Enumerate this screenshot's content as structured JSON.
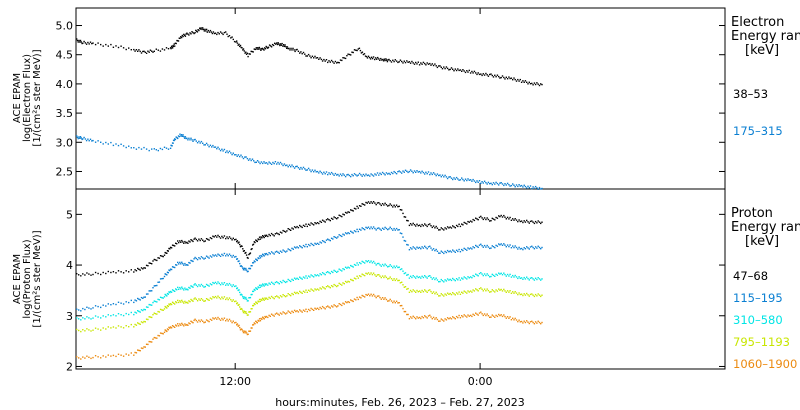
{
  "chart_data": [
    {
      "type": "scatter",
      "panel": "electron",
      "ylabel_lines": [
        "ACE EPAM",
        "log(Electron Flux)",
        "[1/(cm²s ster MeV)]"
      ],
      "ylim": [
        2.2,
        5.3
      ],
      "yticks": [
        2.5,
        3.0,
        3.5,
        4.0,
        4.5,
        5.0
      ],
      "ytick_labels": [
        "2.5",
        "3.0",
        "3.5",
        "4.0",
        "4.5",
        "5.0"
      ],
      "legend_title": [
        "Electron",
        "Energy ran",
        "[keV]"
      ],
      "series": [
        {
          "name": "38–53",
          "color": "#000000",
          "x": [
            4.2,
            4.5,
            5,
            6,
            7,
            7.5,
            8,
            8.8,
            9,
            9.3,
            9.6,
            10,
            10.3,
            10.6,
            11,
            11.5,
            12,
            12.3,
            12.6,
            13,
            13.3,
            13.6,
            14,
            14.3,
            14.6,
            15,
            15.5,
            16,
            16.5,
            17,
            17.5,
            18,
            18.4,
            18.8,
            19.2,
            19.5,
            20,
            20.5,
            21,
            21.5,
            22,
            22.5,
            23,
            23.5,
            24,
            24.5,
            25,
            25.5,
            26,
            26.5,
            27
          ],
          "y": [
            4.76,
            4.72,
            4.7,
            4.66,
            4.6,
            4.55,
            4.58,
            4.62,
            4.68,
            4.82,
            4.86,
            4.9,
            4.96,
            4.92,
            4.88,
            4.88,
            4.74,
            4.62,
            4.5,
            4.63,
            4.6,
            4.65,
            4.7,
            4.68,
            4.62,
            4.58,
            4.5,
            4.45,
            4.4,
            4.38,
            4.5,
            4.62,
            4.47,
            4.45,
            4.43,
            4.41,
            4.4,
            4.38,
            4.36,
            4.36,
            4.3,
            4.27,
            4.24,
            4.22,
            4.18,
            4.16,
            4.13,
            4.1,
            4.06,
            4.02,
            4.0
          ]
        },
        {
          "name": "175–315",
          "color": "#0a7fd2",
          "x": [
            4.2,
            4.5,
            5,
            6,
            7,
            8,
            8.8,
            9,
            9.3,
            9.6,
            10,
            10.5,
            11,
            11.5,
            12,
            12.5,
            13,
            13.5,
            14,
            14.5,
            15,
            15.5,
            16,
            16.5,
            17,
            17.5,
            18,
            18.5,
            19,
            19.5,
            20,
            20.5,
            21,
            21.5,
            22,
            22.5,
            23,
            23.5,
            24,
            24.5,
            25,
            25.5,
            26,
            26.5,
            27
          ],
          "y": [
            3.1,
            3.08,
            3.03,
            2.98,
            2.92,
            2.88,
            2.92,
            3.06,
            3.14,
            3.08,
            3.04,
            2.98,
            2.92,
            2.86,
            2.8,
            2.74,
            2.68,
            2.65,
            2.66,
            2.62,
            2.58,
            2.55,
            2.5,
            2.48,
            2.46,
            2.44,
            2.46,
            2.44,
            2.47,
            2.48,
            2.5,
            2.52,
            2.5,
            2.48,
            2.45,
            2.4,
            2.38,
            2.36,
            2.33,
            2.31,
            2.3,
            2.28,
            2.26,
            2.24,
            2.22
          ]
        }
      ]
    },
    {
      "type": "scatter",
      "panel": "proton",
      "ylabel_lines": [
        "ACE EPAM",
        "log(Proton Flux)",
        "[1/(cm²s ster MeV)]"
      ],
      "ylim": [
        1.95,
        5.5
      ],
      "yticks": [
        2,
        3,
        4,
        5
      ],
      "ytick_labels": [
        "2",
        "3",
        "4",
        "5"
      ],
      "legend_title": [
        "Proton",
        "Energy ran",
        "[keV]"
      ],
      "series": [
        {
          "name": "47–68",
          "color": "#000000",
          "x": [
            4.2,
            5,
            6,
            7,
            7.5,
            8,
            8.5,
            8.8,
            9.2,
            9.6,
            10,
            10.5,
            11,
            11.5,
            12,
            12.3,
            12.6,
            12.9,
            13.2,
            13.5,
            14,
            14.5,
            15,
            15.5,
            16,
            16.5,
            17,
            17.5,
            18,
            18.5,
            19,
            19.5,
            20,
            20.5,
            21,
            21.5,
            22,
            22.5,
            23,
            23.5,
            24,
            24.5,
            25,
            25.5,
            26,
            26.5,
            27
          ],
          "y": [
            3.82,
            3.84,
            3.87,
            3.9,
            3.96,
            4.1,
            4.22,
            4.35,
            4.48,
            4.46,
            4.52,
            4.5,
            4.58,
            4.56,
            4.52,
            4.36,
            4.16,
            4.46,
            4.55,
            4.6,
            4.62,
            4.7,
            4.76,
            4.8,
            4.85,
            4.9,
            4.96,
            5.05,
            5.16,
            5.26,
            5.22,
            5.2,
            5.16,
            4.82,
            4.8,
            4.8,
            4.72,
            4.75,
            4.8,
            4.88,
            4.95,
            4.9,
            4.98,
            4.92,
            4.88,
            4.86,
            4.86
          ]
        },
        {
          "name": "115–195",
          "color": "#0a7fd2",
          "x": [
            4.2,
            5,
            6,
            7,
            7.5,
            8,
            8.5,
            8.8,
            9.2,
            9.6,
            10,
            10.5,
            11,
            11.5,
            12,
            12.3,
            12.6,
            12.9,
            13.2,
            13.5,
            14,
            14.5,
            15,
            15.5,
            16,
            16.5,
            17,
            17.5,
            18,
            18.5,
            19,
            19.5,
            20,
            20.5,
            21,
            21.5,
            22,
            22.5,
            23,
            23.5,
            24,
            24.5,
            25,
            25.5,
            26,
            26.5,
            27
          ],
          "y": [
            3.12,
            3.18,
            3.24,
            3.3,
            3.38,
            3.58,
            3.8,
            3.92,
            4.06,
            4.02,
            4.14,
            4.16,
            4.2,
            4.22,
            4.18,
            3.96,
            3.9,
            4.08,
            4.18,
            4.24,
            4.26,
            4.3,
            4.36,
            4.4,
            4.44,
            4.5,
            4.58,
            4.64,
            4.7,
            4.76,
            4.72,
            4.74,
            4.7,
            4.34,
            4.36,
            4.36,
            4.26,
            4.28,
            4.3,
            4.35,
            4.4,
            4.36,
            4.42,
            4.38,
            4.34,
            4.36,
            4.36
          ]
        },
        {
          "name": "310–580",
          "color": "#00e5e5",
          "x": [
            4.2,
            5,
            6,
            7,
            7.5,
            8,
            8.5,
            8.8,
            9.2,
            9.6,
            10,
            10.5,
            11,
            11.5,
            12,
            12.3,
            12.6,
            12.9,
            13.2,
            13.5,
            14,
            14.5,
            15,
            15.5,
            16,
            16.5,
            17,
            17.5,
            18,
            18.5,
            19,
            19.5,
            20,
            20.5,
            21,
            21.5,
            22,
            22.5,
            23,
            23.5,
            24,
            24.5,
            25,
            25.5,
            26,
            26.5,
            27
          ],
          "y": [
            2.95,
            2.98,
            3.02,
            3.06,
            3.14,
            3.28,
            3.4,
            3.48,
            3.56,
            3.54,
            3.62,
            3.6,
            3.66,
            3.64,
            3.6,
            3.4,
            3.32,
            3.52,
            3.6,
            3.64,
            3.66,
            3.7,
            3.74,
            3.78,
            3.82,
            3.86,
            3.9,
            3.96,
            4.04,
            4.1,
            4.02,
            4.0,
            3.96,
            3.78,
            3.78,
            3.78,
            3.7,
            3.72,
            3.74,
            3.78,
            3.84,
            3.8,
            3.84,
            3.8,
            3.76,
            3.74,
            3.74
          ]
        },
        {
          "name": "795–1193",
          "color": "#c8e600",
          "x": [
            4.2,
            5,
            6,
            7,
            7.5,
            8,
            8.5,
            8.8,
            9.2,
            9.6,
            10,
            10.5,
            11,
            11.5,
            12,
            12.3,
            12.6,
            12.9,
            13.2,
            13.5,
            14,
            14.5,
            15,
            15.5,
            16,
            16.5,
            17,
            17.5,
            18,
            18.5,
            19,
            19.5,
            20,
            20.5,
            21,
            21.5,
            22,
            22.5,
            23,
            23.5,
            24,
            24.5,
            25,
            25.5,
            26,
            26.5,
            27
          ],
          "y": [
            2.72,
            2.74,
            2.78,
            2.82,
            2.9,
            3.04,
            3.16,
            3.24,
            3.3,
            3.28,
            3.34,
            3.32,
            3.38,
            3.36,
            3.3,
            3.12,
            3.04,
            3.24,
            3.32,
            3.36,
            3.38,
            3.42,
            3.46,
            3.5,
            3.54,
            3.58,
            3.62,
            3.68,
            3.78,
            3.86,
            3.8,
            3.76,
            3.7,
            3.5,
            3.5,
            3.5,
            3.42,
            3.44,
            3.46,
            3.5,
            3.54,
            3.5,
            3.52,
            3.48,
            3.44,
            3.42,
            3.42
          ]
        },
        {
          "name": "1060–1900",
          "color": "#ec8a10",
          "x": [
            4.2,
            5,
            6,
            7,
            7.5,
            8,
            8.5,
            8.8,
            9.2,
            9.6,
            10,
            10.5,
            11,
            11.5,
            12,
            12.3,
            12.6,
            12.9,
            13.2,
            13.5,
            14,
            14.5,
            15,
            15.5,
            16,
            16.5,
            17,
            17.5,
            18,
            18.5,
            19,
            19.5,
            20,
            20.5,
            21,
            21.5,
            22,
            22.5,
            23,
            23.5,
            24,
            24.5,
            25,
            25.5,
            26,
            26.5,
            27
          ],
          "y": [
            2.18,
            2.2,
            2.22,
            2.26,
            2.4,
            2.56,
            2.7,
            2.78,
            2.84,
            2.84,
            2.92,
            2.9,
            2.96,
            2.94,
            2.88,
            2.72,
            2.66,
            2.86,
            2.94,
            3.0,
            3.04,
            3.08,
            3.1,
            3.12,
            3.16,
            3.18,
            3.22,
            3.28,
            3.36,
            3.44,
            3.38,
            3.32,
            3.26,
            2.98,
            2.98,
            3.0,
            2.92,
            2.96,
            3.0,
            3.02,
            3.06,
            3.0,
            3.02,
            2.96,
            2.9,
            2.88,
            2.88
          ]
        }
      ]
    }
  ],
  "x_axis": {
    "xlim": [
      4.2,
      36
    ],
    "ticks": [
      12,
      24
    ],
    "tick_labels": [
      "12:00",
      "0:00"
    ],
    "label": "hours:minutes, Feb. 26, 2023 – Feb. 27, 2023"
  }
}
